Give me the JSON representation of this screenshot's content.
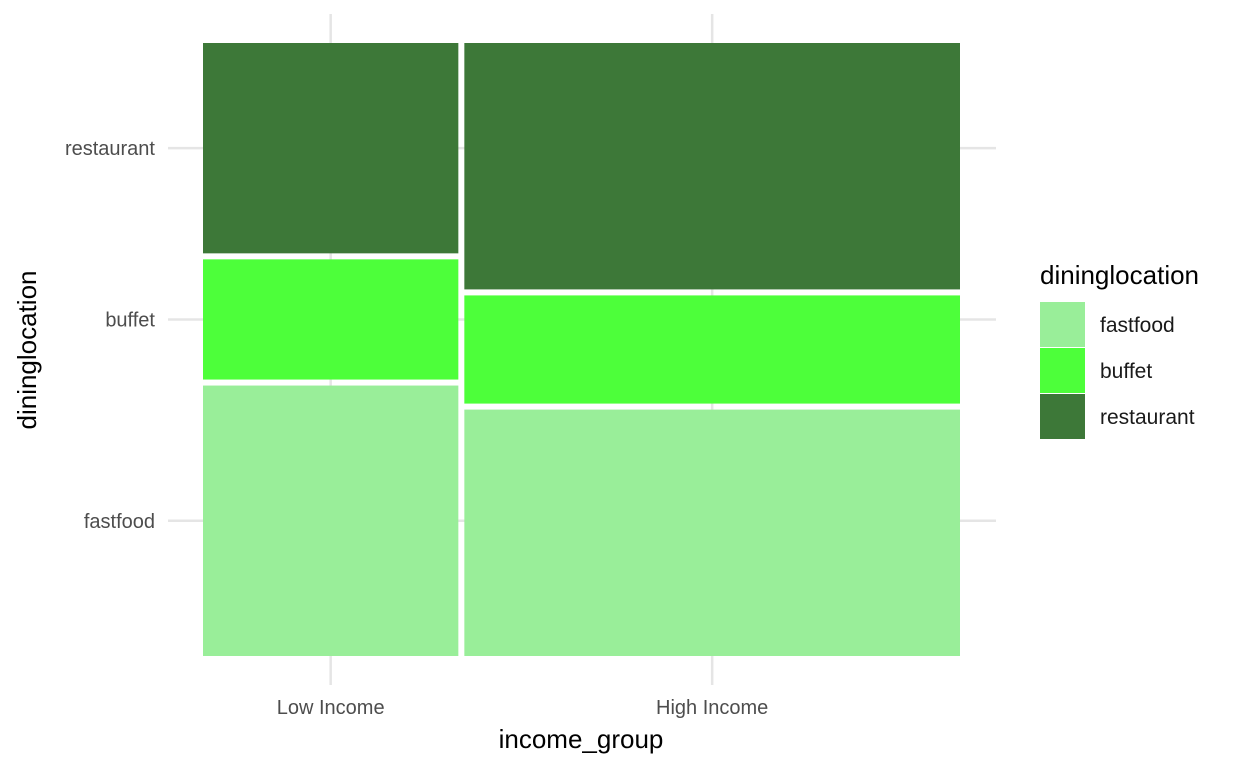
{
  "chart_data": {
    "type": "mosaic",
    "xlabel": "income_group",
    "ylabel": "dininglocation",
    "categories": [
      "Low Income",
      "High Income"
    ],
    "column_widths": [
      0.34,
      0.66
    ],
    "series": [
      {
        "name": "fastfood",
        "values": [
          0.45,
          0.41
        ],
        "color": "#99ee99"
      },
      {
        "name": "buffet",
        "values": [
          0.2,
          0.18
        ],
        "color": "#4dff3a"
      },
      {
        "name": "restaurant",
        "values": [
          0.35,
          0.41
        ],
        "color": "#3d7838"
      }
    ],
    "y_ticks": [
      "restaurant",
      "buffet",
      "fastfood"
    ],
    "legend": {
      "title": "dininglocation",
      "position": "right"
    },
    "grid": true
  }
}
